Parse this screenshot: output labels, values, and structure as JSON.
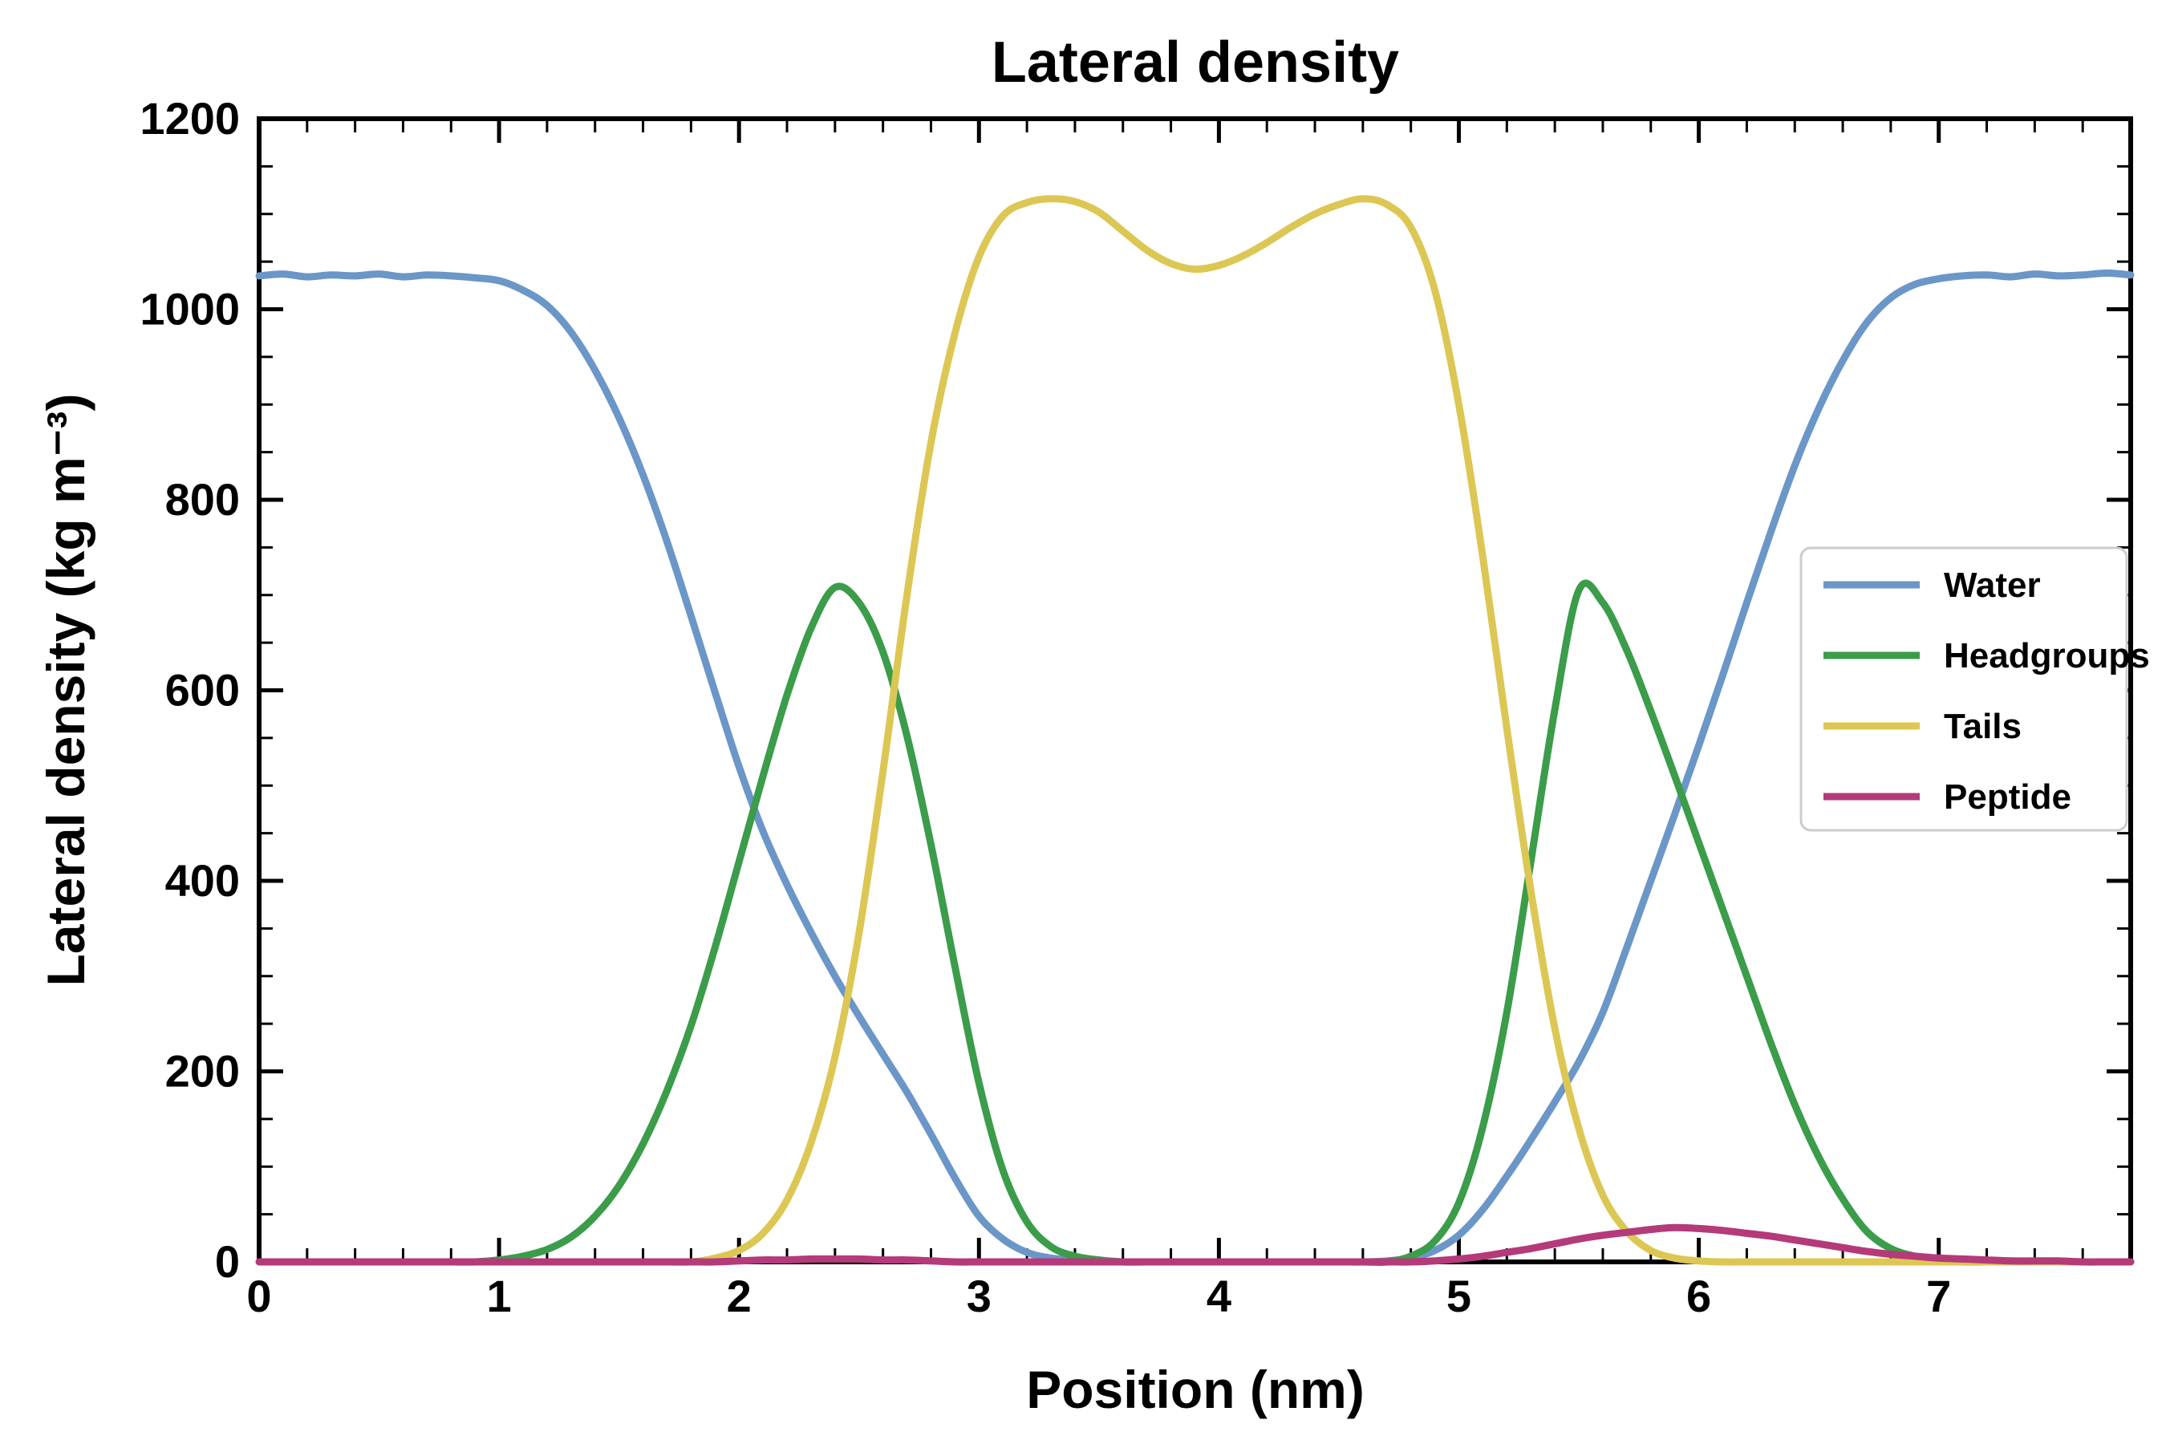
{
  "page": {
    "background": "#ffffff"
  },
  "chart_data": {
    "type": "line",
    "title": "Lateral density",
    "xlabel": "Position (nm)",
    "ylabel": "Lateral density (kg m⁻³)",
    "xlim": [
      0,
      7.8
    ],
    "ylim": [
      0,
      1200
    ],
    "x_ticks": [
      0,
      1,
      2,
      3,
      4,
      5,
      6,
      7
    ],
    "x_minor_step": 0.2,
    "y_ticks": [
      0,
      200,
      400,
      600,
      800,
      1000,
      1200
    ],
    "y_minor_step": 50,
    "grid": false,
    "legend_position": "center right",
    "axis_color": "#000000",
    "line_width": 9,
    "x_start": 0,
    "x_step": 0.1,
    "series": [
      {
        "name": "Water",
        "color": "#6b96c8",
        "values": [
          1035,
          1037,
          1034,
          1036,
          1035,
          1037,
          1034,
          1036,
          1035,
          1033,
          1030,
          1020,
          1004,
          976,
          936,
          886,
          826,
          756,
          678,
          598,
          520,
          452,
          396,
          346,
          300,
          258,
          218,
          178,
          134,
          88,
          48,
          24,
          10,
          4,
          2,
          1,
          0,
          0,
          0,
          0,
          0,
          0,
          0,
          0,
          0,
          0,
          0,
          1,
          4,
          12,
          28,
          55,
          90,
          128,
          168,
          210,
          262,
          330,
          400,
          470,
          542,
          616,
          692,
          766,
          836,
          896,
          946,
          986,
          1012,
          1026,
          1032,
          1035,
          1036,
          1034,
          1037,
          1035,
          1036,
          1038,
          1036
        ]
      },
      {
        "name": "Headgroups",
        "color": "#3b9c4a",
        "values": [
          0,
          0,
          0,
          0,
          0,
          0,
          0,
          0,
          0,
          0,
          2,
          6,
          13,
          26,
          48,
          80,
          124,
          180,
          248,
          330,
          420,
          510,
          595,
          665,
          708,
          692,
          640,
          552,
          438,
          310,
          188,
          96,
          42,
          16,
          6,
          2,
          0,
          0,
          0,
          0,
          0,
          0,
          0,
          0,
          0,
          0,
          0,
          0,
          6,
          22,
          62,
          142,
          262,
          420,
          580,
          705,
          692,
          642,
          578,
          510,
          440,
          370,
          300,
          230,
          165,
          110,
          66,
          32,
          14,
          6,
          2,
          0,
          0,
          0,
          0,
          0,
          0,
          0,
          0
        ]
      },
      {
        "name": "Tails",
        "color": "#dcc754",
        "values": [
          0,
          0,
          0,
          0,
          0,
          0,
          0,
          0,
          0,
          0,
          0,
          0,
          0,
          0,
          0,
          0,
          0,
          0,
          0,
          4,
          12,
          30,
          65,
          125,
          215,
          345,
          515,
          700,
          860,
          975,
          1055,
          1098,
          1112,
          1116,
          1113,
          1102,
          1082,
          1062,
          1048,
          1042,
          1046,
          1056,
          1070,
          1086,
          1100,
          1110,
          1116,
          1110,
          1086,
          1020,
          900,
          740,
          560,
          390,
          245,
          140,
          70,
          32,
          12,
          4,
          1,
          0,
          0,
          0,
          0,
          0,
          0,
          0,
          0,
          0,
          0,
          0,
          0,
          0,
          0,
          0,
          0,
          0,
          0
        ]
      },
      {
        "name": "Peptide",
        "color": "#b43a7a",
        "values": [
          0,
          0,
          0,
          0,
          0,
          0,
          0,
          0,
          0,
          0,
          0,
          0,
          0,
          0,
          0,
          0,
          0,
          0,
          0,
          0,
          1,
          2,
          2,
          3,
          3,
          3,
          2,
          2,
          1,
          0,
          0,
          0,
          0,
          0,
          0,
          0,
          0,
          0,
          0,
          0,
          0,
          0,
          0,
          0,
          0,
          0,
          0,
          0,
          0,
          1,
          3,
          6,
          10,
          14,
          19,
          24,
          28,
          31,
          34,
          36,
          35,
          33,
          30,
          27,
          23,
          19,
          15,
          11,
          8,
          6,
          4,
          3,
          2,
          1,
          1,
          1,
          0,
          0,
          0
        ]
      }
    ]
  }
}
